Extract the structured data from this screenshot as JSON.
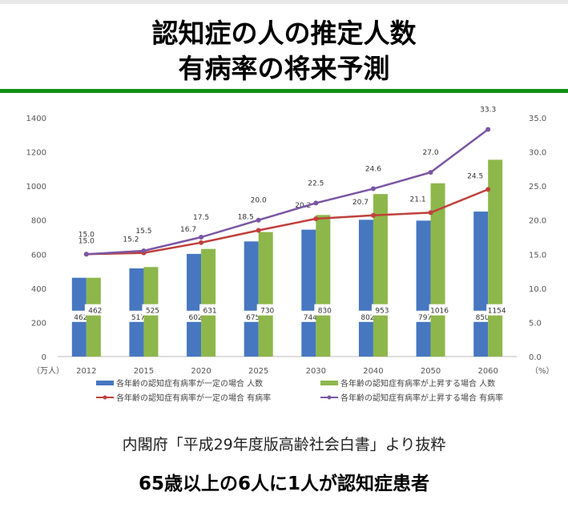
{
  "header": {
    "title_line1": "認知症の人の推定人数",
    "title_line2": "有病率の将来予測"
  },
  "source": "内閣府「平成29年度版高齢社会白書」より抜粋",
  "footer": "65歳以上の6人に1人が認知症患者",
  "chart_data": {
    "type": "bar+line",
    "categories": [
      "2012",
      "2015",
      "2020",
      "2025",
      "2030",
      "2040",
      "2050",
      "2060"
    ],
    "left_axis": {
      "unit": "（万人）",
      "ylim": [
        0,
        1400
      ],
      "ticks": [
        0,
        200,
        400,
        600,
        800,
        1000,
        1200,
        1400
      ]
    },
    "right_axis": {
      "unit": "（%）",
      "ylim": [
        0,
        35
      ],
      "ticks": [
        "0.0",
        "5.0",
        "10.0",
        "15.0",
        "20.0",
        "25.0",
        "30.0",
        "35.0"
      ]
    },
    "series": [
      {
        "name": "各年齢の認知症有病率が一定の場合 人数",
        "type": "bar",
        "axis": "left",
        "color": "#4677c0",
        "values": [
          462,
          517,
          602,
          675,
          744,
          802,
          797,
          850
        ]
      },
      {
        "name": "各年齢の認知症有病率が上昇する場合 人数",
        "type": "bar",
        "axis": "left",
        "color": "#8db74a",
        "values": [
          462,
          525,
          631,
          730,
          830,
          953,
          1016,
          1154
        ]
      },
      {
        "name": "各年齢の認知症有病率が一定の場合 有病率",
        "type": "line",
        "axis": "right",
        "color": "#c0403c",
        "values": [
          15.0,
          15.2,
          16.7,
          18.5,
          20.2,
          20.7,
          21.1,
          24.5
        ]
      },
      {
        "name": "各年齢の認知症有病率が上昇する場合 有病率",
        "type": "line",
        "axis": "right",
        "color": "#7a56a3",
        "values": [
          15.0,
          15.5,
          17.5,
          20.0,
          22.5,
          24.6,
          27.0,
          33.3
        ]
      }
    ],
    "grid": false,
    "legend": "bottom"
  }
}
